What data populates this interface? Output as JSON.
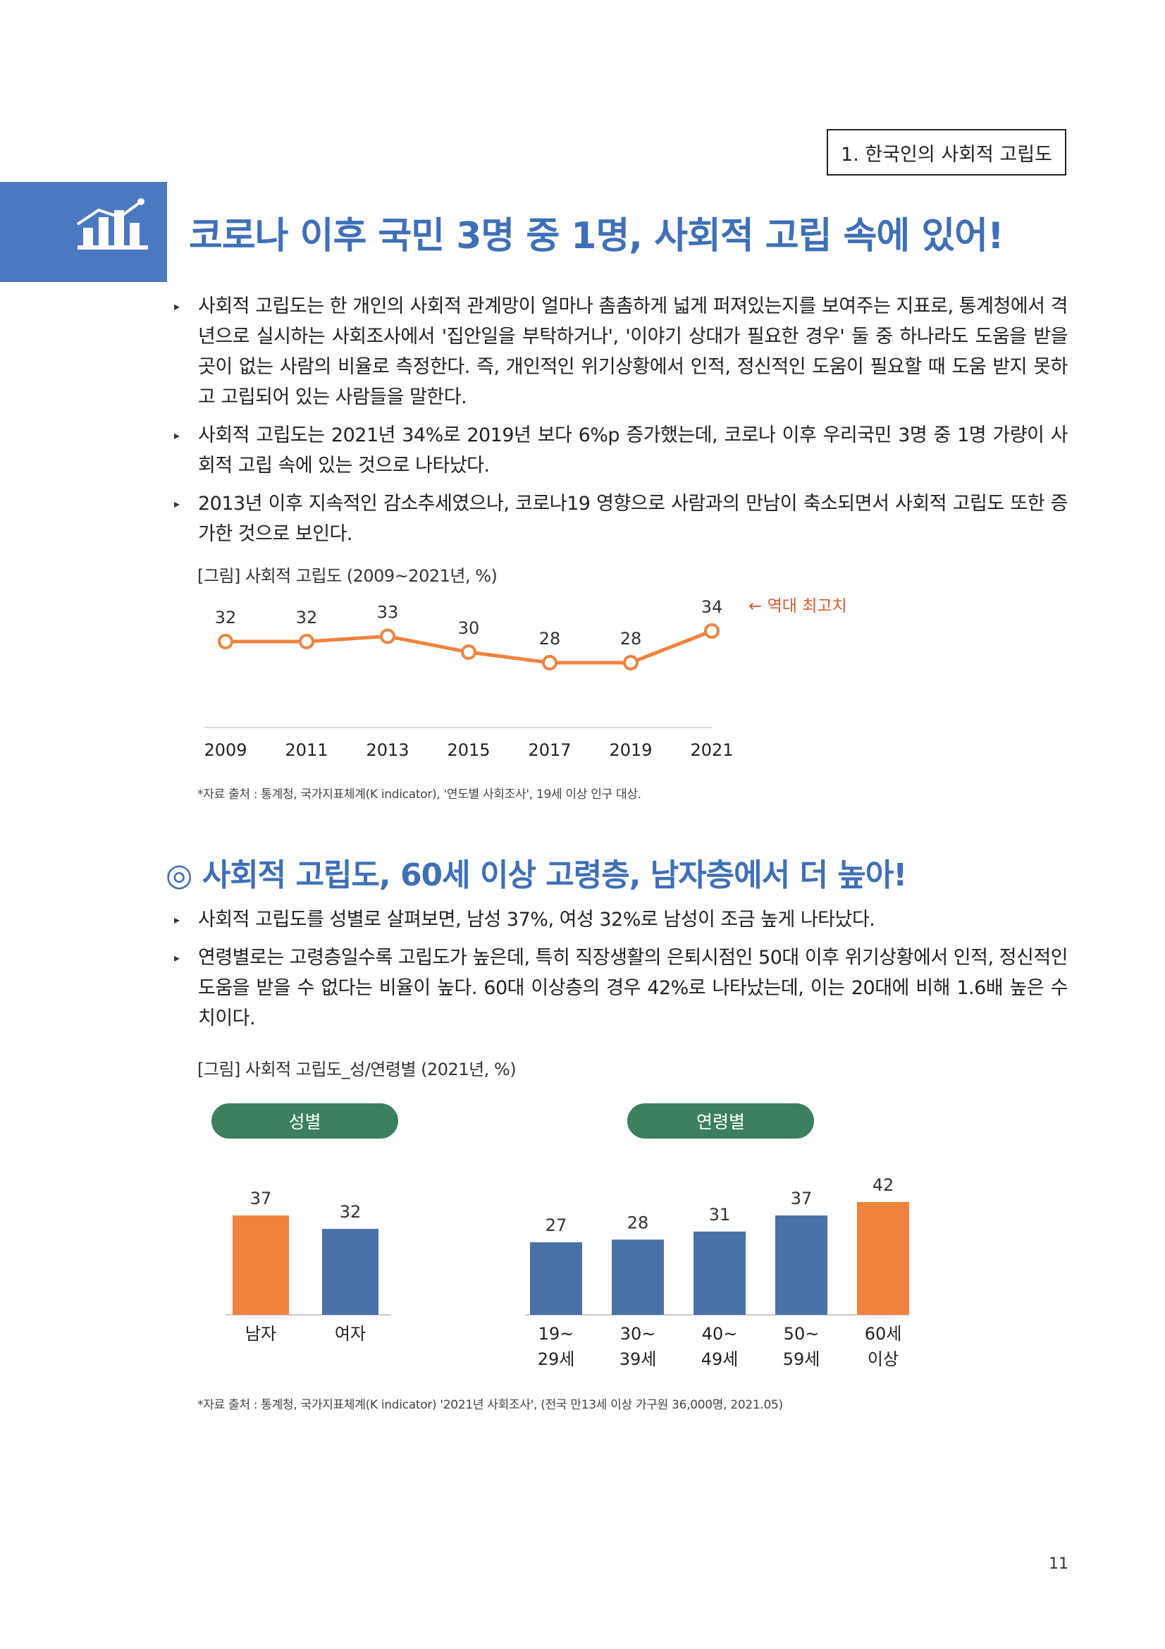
{
  "section_tag": "1. 한국인의 사회적 고립도",
  "main_title": "코로나 이후 국민 3명 중 1명, 사회적 고립 속에 있어!",
  "intro_bullets": [
    "사회적 고립도는 한 개인의 사회적 관계망이 얼마나 촘촘하게 넓게 퍼져있는지를 보여주는 지표로, 통계청에서 격년으로 실시하는 사회조사에서 '집안일을 부탁하거나', '이야기 상대가 필요한 경우' 둘 중 하나라도 도움을 받을 곳이 없는 사람의 비율로 측정한다. 즉, 개인적인 위기상황에서 인적, 정신적인 도움이 필요할 때 도움 받지 못하고 고립되어 있는 사람들을 말한다.",
    "사회적 고립도는 2021년 34%로 2019년 보다 6%p 증가했는데, 코로나 이후 우리국민 3명 중 1명 가량이 사회적 고립 속에 있는 것으로 나타났다.",
    "2013년 이후 지속적인 감소추세였으나, 코로나19 영향으로 사람과의 만남이 축소되면서 사회적 고립도 또한 증가한 것으로 보인다."
  ],
  "figure1_caption": "[그림] 사회적 고립도 (2009~2021년, %)",
  "figure1_source": "*자료 출처 : 통계청, 국가지표체계(K indicator), '연도별 사회조사', 19세 이상 인구 대상.",
  "sub_title": "◎ 사회적 고립도, 60세 이상 고령층, 남자층에서 더 높아!",
  "sub_bullets": [
    "사회적 고립도를 성별로 살펴보면, 남성 37%, 여성 32%로 남성이 조금 높게 나타났다.",
    "연령별로는 고령층일수록 고립도가 높은데, 특히 직장생활의 은퇴시점인 50대 이후 위기상황에서 인적, 정신적인 도움을 받을 수 없다는 비율이 높다. 60대 이상층의 경우 42%로 나타났는데, 이는 20대에 비해 1.6배 높은 수치이다."
  ],
  "figure2_caption": "[그림] 사회적 고립도_성/연령별 (2021년, %)",
  "figure2_source": "*자료 출처 : 통계청, 국가지표체계(K indicator) '2021년 사회조사', (전국 만13세 이상 가구원 36,000명, 2021.05)",
  "page_number": "11",
  "colors": {
    "accent_blue": "#3f6fb8",
    "orange": "#f0823e",
    "bar_blue": "#4a70a8",
    "pill_green": "#3c7f5e"
  },
  "chart_data": [
    {
      "type": "line",
      "x": [
        "2009",
        "2011",
        "2013",
        "2015",
        "2017",
        "2019",
        "2021"
      ],
      "series": [
        {
          "values": [
            32,
            32,
            33,
            30,
            28,
            28,
            34
          ]
        }
      ],
      "annotation": "← 역대 최고치",
      "ylim": [
        20,
        36
      ],
      "grid": false
    },
    {
      "type": "bar",
      "panel_label": "성별",
      "categories": [
        "남자",
        "여자"
      ],
      "values": [
        37,
        32
      ],
      "highlight": [
        "남자"
      ],
      "ylim": [
        0,
        45
      ]
    },
    {
      "type": "bar",
      "panel_label": "연령별",
      "categories": [
        [
          "19~",
          "29세"
        ],
        [
          "30~",
          "39세"
        ],
        [
          "40~",
          "49세"
        ],
        [
          "50~",
          "59세"
        ],
        [
          "60세",
          "이상"
        ]
      ],
      "values": [
        27,
        28,
        31,
        37,
        42
      ],
      "highlight": [
        "60세 이상"
      ],
      "ylim": [
        0,
        45
      ]
    }
  ]
}
